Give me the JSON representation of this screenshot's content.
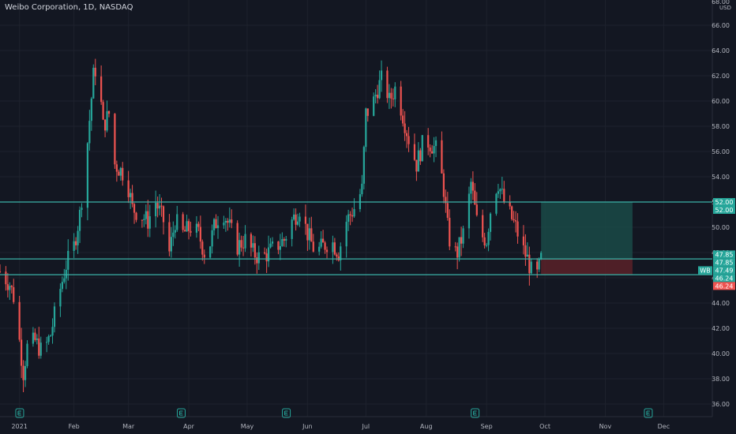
{
  "header": {
    "title": "Weibo Corporation, 1D, NASDAQ"
  },
  "axis": {
    "unit": "USD",
    "top_label": "68.00"
  },
  "colors": {
    "bg": "#131722",
    "grid": "#1e222d",
    "up": "#26a69a",
    "down": "#ef5350",
    "level": "#3bb3a8",
    "profit": "#1a4a46",
    "loss": "#5b2128",
    "orange": "#f29e33"
  },
  "chart_data": {
    "type": "candlestick",
    "ylim": [
      35,
      68
    ],
    "yticks": [
      "36.00",
      "38.00",
      "40.00",
      "42.00",
      "44.00",
      "46.00",
      "48.00",
      "50.00",
      "52.00",
      "54.00",
      "56.00",
      "58.00",
      "60.00",
      "62.00",
      "64.00",
      "66.00"
    ],
    "xticks": [
      {
        "label": "2021",
        "day": 0
      },
      {
        "label": "Feb",
        "day": 28
      },
      {
        "label": "Mar",
        "day": 56
      },
      {
        "label": "Apr",
        "day": 87
      },
      {
        "label": "May",
        "day": 117
      },
      {
        "label": "Jun",
        "day": 148
      },
      {
        "label": "Jul",
        "day": 178
      },
      {
        "label": "Aug",
        "day": 209
      },
      {
        "label": "Sep",
        "day": 240
      },
      {
        "label": "Oct",
        "day": 270
      },
      {
        "label": "Nov",
        "day": 301
      },
      {
        "label": "Dec",
        "day": 331
      }
    ],
    "xlim": [
      -10,
      356
    ],
    "horizontal_levels": [
      52.0,
      47.49,
      46.24
    ],
    "position": {
      "entry": 47.49,
      "target": 52.0,
      "stop": 46.24,
      "start_day": 268,
      "end_day": 315
    },
    "price_badges": [
      {
        "value": 52.0,
        "label": "52.00",
        "kind": "level"
      },
      {
        "value": 52.0,
        "label": "52.00",
        "kind": "level"
      },
      {
        "value": 47.85,
        "label": "47.85",
        "kind": "level"
      },
      {
        "value": 47.85,
        "label": "47.85",
        "kind": "level"
      },
      {
        "value": 47.49,
        "label": "47.49",
        "kind": "last",
        "prefix": "WB"
      },
      {
        "value": 46.24,
        "label": "46.24",
        "kind": "level"
      },
      {
        "value": 46.24,
        "label": "46.24",
        "kind": "down"
      }
    ],
    "earnings_days": [
      -8,
      75,
      129,
      226,
      315
    ],
    "keypoints": [
      [
        -10,
        46.5
      ],
      [
        -5,
        45.5
      ],
      [
        -2,
        44.0
      ],
      [
        0,
        41.0
      ],
      [
        2,
        38.5
      ],
      [
        4,
        40.5
      ],
      [
        8,
        41.0
      ],
      [
        12,
        40.0
      ],
      [
        16,
        41.5
      ],
      [
        20,
        44.5
      ],
      [
        24,
        47.0
      ],
      [
        28,
        48.5
      ],
      [
        31,
        51.0
      ],
      [
        34,
        55.0
      ],
      [
        38,
        62.0
      ],
      [
        40,
        63.0
      ],
      [
        43,
        58.0
      ],
      [
        46,
        59.0
      ],
      [
        49,
        55.0
      ],
      [
        52,
        54.5
      ],
      [
        55,
        54.0
      ],
      [
        58,
        51.5
      ],
      [
        62,
        51.0
      ],
      [
        66,
        50.5
      ],
      [
        70,
        52.0
      ],
      [
        74,
        50.5
      ],
      [
        77,
        48.0
      ],
      [
        80,
        50.5
      ],
      [
        84,
        49.5
      ],
      [
        88,
        50.0
      ],
      [
        92,
        49.5
      ],
      [
        96,
        47.5
      ],
      [
        100,
        50.0
      ],
      [
        104,
        51.5
      ],
      [
        108,
        50.0
      ],
      [
        112,
        48.5
      ],
      [
        116,
        49.0
      ],
      [
        120,
        48.0
      ],
      [
        124,
        47.5
      ],
      [
        128,
        48.0
      ],
      [
        132,
        48.5
      ],
      [
        136,
        49.0
      ],
      [
        140,
        50.5
      ],
      [
        144,
        51.5
      ],
      [
        148,
        49.5
      ],
      [
        152,
        48.0
      ],
      [
        156,
        48.5
      ],
      [
        160,
        49.0
      ],
      [
        164,
        48.0
      ],
      [
        168,
        50.5
      ],
      [
        172,
        51.5
      ],
      [
        176,
        53.0
      ],
      [
        178,
        59.0
      ],
      [
        181,
        59.5
      ],
      [
        184,
        61.0
      ],
      [
        187,
        62.0
      ],
      [
        190,
        60.0
      ],
      [
        193,
        61.0
      ],
      [
        196,
        59.5
      ],
      [
        200,
        57.0
      ],
      [
        204,
        55.0
      ],
      [
        208,
        57.0
      ],
      [
        212,
        56.5
      ],
      [
        215,
        56.0
      ],
      [
        218,
        53.0
      ],
      [
        220,
        50.0
      ],
      [
        222,
        48.0
      ],
      [
        225,
        48.0
      ],
      [
        229,
        50.0
      ],
      [
        232,
        53.5
      ],
      [
        236,
        49.5
      ],
      [
        240,
        49.0
      ],
      [
        243,
        52.5
      ],
      [
        246,
        53.5
      ],
      [
        249,
        52.0
      ],
      [
        252,
        51.0
      ],
      [
        255,
        50.0
      ],
      [
        258,
        48.5
      ],
      [
        261,
        47.5
      ],
      [
        263,
        46.5
      ],
      [
        266,
        46.2
      ],
      [
        268,
        47.5
      ]
    ]
  }
}
